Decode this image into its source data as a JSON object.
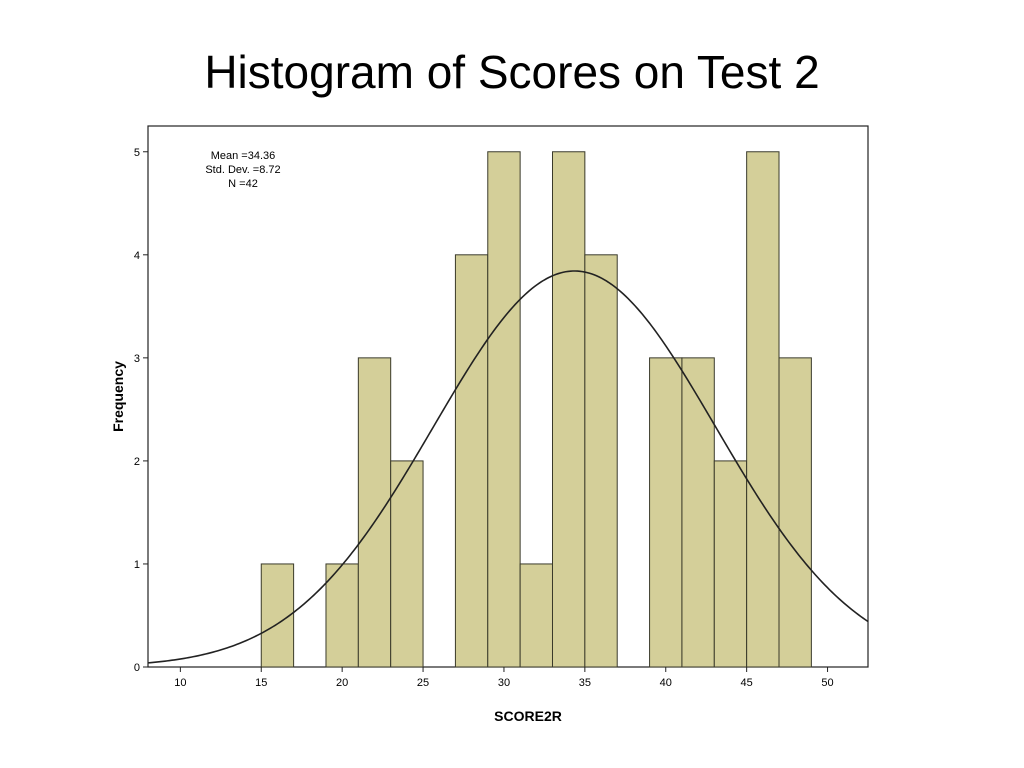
{
  "slide": {
    "title": "Histogram of Scores on Test 2"
  },
  "colors": {
    "bar_fill": "#d4cf99",
    "bar_stroke": "#3a3a2a",
    "curve": "#222222",
    "frame": "#222222"
  },
  "chart_data": {
    "type": "bar",
    "title": "Histogram of Scores on Test 2",
    "xlabel": "SCORE2R",
    "ylabel": "Frequency",
    "xlim": [
      8,
      52.5
    ],
    "ylim": [
      0,
      5.25
    ],
    "bin_width": 2,
    "bins": [
      {
        "start": 15,
        "end": 17,
        "count": 1
      },
      {
        "start": 19,
        "end": 21,
        "count": 1
      },
      {
        "start": 21,
        "end": 23,
        "count": 3
      },
      {
        "start": 23,
        "end": 25,
        "count": 2
      },
      {
        "start": 27,
        "end": 29,
        "count": 4
      },
      {
        "start": 29,
        "end": 31,
        "count": 5
      },
      {
        "start": 31,
        "end": 33,
        "count": 1
      },
      {
        "start": 33,
        "end": 35,
        "count": 5
      },
      {
        "start": 35,
        "end": 37,
        "count": 4
      },
      {
        "start": 39,
        "end": 41,
        "count": 3
      },
      {
        "start": 41,
        "end": 43,
        "count": 3
      },
      {
        "start": 43,
        "end": 45,
        "count": 2
      },
      {
        "start": 45,
        "end": 47,
        "count": 5
      },
      {
        "start": 47,
        "end": 49,
        "count": 3
      }
    ],
    "x_ticks": [
      "10",
      "15",
      "20",
      "25",
      "30",
      "35",
      "40",
      "45",
      "50"
    ],
    "y_ticks": [
      "0",
      "1",
      "2",
      "3",
      "4",
      "5"
    ],
    "normal_curve": {
      "mean": 34.36,
      "std_dev": 8.72,
      "n": 42
    },
    "stats": {
      "mean_label": "Mean =34.36",
      "std_label": "Std. Dev. =8.72",
      "n_label": "N =42"
    },
    "grid": false,
    "legend": "none"
  }
}
